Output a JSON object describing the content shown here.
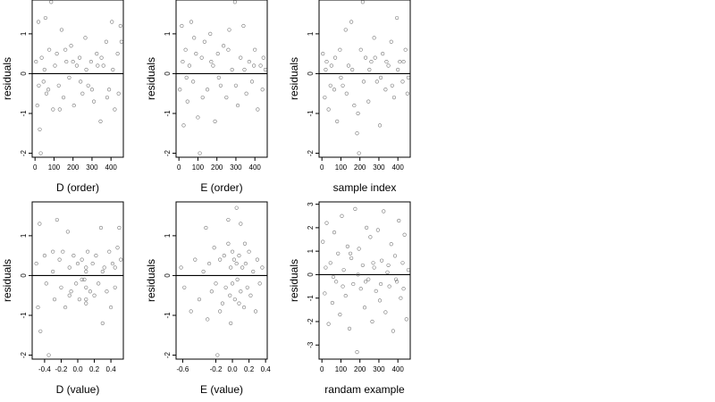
{
  "chart_data": [
    {
      "type": "scatter",
      "xlabel": "D (order)",
      "ylabel": "residuals",
      "xlim": [
        -15,
        465
      ],
      "ylim": [
        -2.1,
        1.85
      ],
      "xticks": [
        0,
        100,
        200,
        300,
        400
      ],
      "xtick_labels": [
        "0",
        "100",
        "200",
        "300",
        "400"
      ],
      "yticks": [
        -2,
        -1,
        0,
        1
      ],
      "ytick_labels": [
        "-2",
        "-1",
        "0",
        "1"
      ],
      "reference_line": 0,
      "grid": false,
      "points": [
        [
          5,
          0.3
        ],
        [
          12,
          -0.8
        ],
        [
          18,
          1.3
        ],
        [
          25,
          -1.4
        ],
        [
          35,
          0.4
        ],
        [
          45,
          -0.2
        ],
        [
          55,
          1.4
        ],
        [
          60,
          -0.5
        ],
        [
          75,
          0.6
        ],
        [
          85,
          1.8
        ],
        [
          95,
          -0.9
        ],
        [
          105,
          0.2
        ],
        [
          115,
          0.5
        ],
        [
          125,
          -0.3
        ],
        [
          140,
          1.1
        ],
        [
          150,
          -0.6
        ],
        [
          165,
          0.3
        ],
        [
          180,
          -0.1
        ],
        [
          190,
          0.7
        ],
        [
          205,
          -0.8
        ],
        [
          220,
          0.2
        ],
        [
          235,
          0.4
        ],
        [
          250,
          -0.5
        ],
        [
          265,
          0.9
        ],
        [
          280,
          -0.3
        ],
        [
          295,
          0.3
        ],
        [
          310,
          -0.7
        ],
        [
          325,
          0.5
        ],
        [
          345,
          -1.2
        ],
        [
          360,
          0.2
        ],
        [
          375,
          0.8
        ],
        [
          390,
          -0.4
        ],
        [
          405,
          1.3
        ],
        [
          420,
          -0.9
        ],
        [
          435,
          0.5
        ],
        [
          450,
          1.2
        ],
        [
          20,
          -0.3
        ],
        [
          30,
          -2.0
        ],
        [
          50,
          0.1
        ],
        [
          70,
          -0.4
        ],
        [
          130,
          -0.9
        ],
        [
          160,
          0.6
        ],
        [
          200,
          0.3
        ],
        [
          240,
          -0.2
        ],
        [
          270,
          0.1
        ],
        [
          300,
          -0.4
        ],
        [
          330,
          0.2
        ],
        [
          350,
          0.4
        ],
        [
          380,
          -0.6
        ],
        [
          410,
          0.1
        ],
        [
          440,
          -0.5
        ],
        [
          455,
          0.8
        ]
      ]
    },
    {
      "type": "scatter",
      "xlabel": "E (order)",
      "ylabel": "residuals",
      "xlim": [
        -15,
        465
      ],
      "ylim": [
        -2.1,
        1.85
      ],
      "xticks": [
        0,
        100,
        200,
        300,
        400
      ],
      "xtick_labels": [
        "0",
        "100",
        "200",
        "300",
        "400"
      ],
      "yticks": [
        -2,
        -1,
        0,
        1
      ],
      "ytick_labels": [
        "-2",
        "-1",
        "0",
        "1"
      ],
      "reference_line": 0,
      "grid": false,
      "points": [
        [
          5,
          -0.4
        ],
        [
          15,
          1.2
        ],
        [
          25,
          -1.3
        ],
        [
          35,
          0.6
        ],
        [
          45,
          -0.7
        ],
        [
          55,
          0.2
        ],
        [
          65,
          1.3
        ],
        [
          75,
          -0.2
        ],
        [
          90,
          0.5
        ],
        [
          100,
          -1.1
        ],
        [
          110,
          -2.0
        ],
        [
          120,
          0.4
        ],
        [
          135,
          0.8
        ],
        [
          150,
          -0.4
        ],
        [
          165,
          1.0
        ],
        [
          180,
          0.2
        ],
        [
          190,
          -1.2
        ],
        [
          205,
          0.5
        ],
        [
          220,
          -0.3
        ],
        [
          235,
          0.7
        ],
        [
          250,
          -0.6
        ],
        [
          265,
          1.1
        ],
        [
          280,
          0.1
        ],
        [
          295,
          1.8
        ],
        [
          310,
          -0.8
        ],
        [
          325,
          0.4
        ],
        [
          340,
          1.2
        ],
        [
          355,
          -0.5
        ],
        [
          370,
          0.3
        ],
        [
          385,
          -0.2
        ],
        [
          400,
          0.6
        ],
        [
          415,
          -0.9
        ],
        [
          430,
          0.2
        ],
        [
          445,
          0.4
        ],
        [
          20,
          0.3
        ],
        [
          40,
          -0.1
        ],
        [
          80,
          0.9
        ],
        [
          125,
          -0.6
        ],
        [
          170,
          0.3
        ],
        [
          210,
          -0.1
        ],
        [
          260,
          0.6
        ],
        [
          300,
          -0.3
        ],
        [
          345,
          0.1
        ],
        [
          395,
          0.2
        ],
        [
          440,
          -0.4
        ],
        [
          455,
          0.1
        ]
      ]
    },
    {
      "type": "scatter",
      "xlabel": "sample index",
      "ylabel": "residuals",
      "xlim": [
        -15,
        465
      ],
      "ylim": [
        -2.1,
        1.85
      ],
      "xticks": [
        0,
        100,
        200,
        300,
        400
      ],
      "xtick_labels": [
        "0",
        "100",
        "200",
        "300",
        "400"
      ],
      "yticks": [
        -2,
        -1,
        0,
        1
      ],
      "ytick_labels": [
        "-2",
        "-1",
        "0",
        "1"
      ],
      "reference_line": 0,
      "grid": false,
      "points": [
        [
          5,
          0.5
        ],
        [
          15,
          -0.6
        ],
        [
          25,
          0.3
        ],
        [
          35,
          -0.9
        ],
        [
          50,
          0.2
        ],
        [
          65,
          -0.4
        ],
        [
          80,
          -1.2
        ],
        [
          95,
          0.6
        ],
        [
          110,
          -0.3
        ],
        [
          125,
          1.1
        ],
        [
          140,
          0.2
        ],
        [
          155,
          1.3
        ],
        [
          170,
          -0.8
        ],
        [
          185,
          -1.5
        ],
        [
          195,
          -2.0
        ],
        [
          205,
          0.6
        ],
        [
          215,
          1.8
        ],
        [
          230,
          0.4
        ],
        [
          245,
          -0.7
        ],
        [
          260,
          0.3
        ],
        [
          275,
          0.9
        ],
        [
          290,
          -0.2
        ],
        [
          305,
          -1.3
        ],
        [
          320,
          0.5
        ],
        [
          335,
          -0.4
        ],
        [
          350,
          0.2
        ],
        [
          365,
          0.8
        ],
        [
          380,
          -0.6
        ],
        [
          395,
          1.4
        ],
        [
          410,
          0.3
        ],
        [
          425,
          -0.2
        ],
        [
          440,
          0.6
        ],
        [
          450,
          -0.5
        ],
        [
          20,
          0.1
        ],
        [
          45,
          -0.3
        ],
        [
          70,
          0.4
        ],
        [
          100,
          -0.1
        ],
        [
          130,
          -0.5
        ],
        [
          160,
          0.1
        ],
        [
          190,
          -1.0
        ],
        [
          220,
          -0.2
        ],
        [
          250,
          0.1
        ],
        [
          280,
          0.4
        ],
        [
          310,
          -0.1
        ],
        [
          340,
          0.3
        ],
        [
          370,
          -0.3
        ],
        [
          400,
          0.1
        ],
        [
          430,
          0.3
        ],
        [
          455,
          -0.1
        ]
      ]
    },
    {
      "type": "scatter",
      "xlabel": "D (value)",
      "ylabel": "residuals",
      "xlim": [
        -0.55,
        0.55
      ],
      "ylim": [
        -2.1,
        1.85
      ],
      "xticks": [
        -0.4,
        -0.2,
        0.0,
        0.2,
        0.4
      ],
      "xtick_labels": [
        "-0.4",
        "-0.2",
        "0.0",
        "0.2",
        "0.4"
      ],
      "yticks": [
        -2,
        -1,
        0,
        1
      ],
      "ytick_labels": [
        "-2",
        "-1",
        "0",
        "1"
      ],
      "reference_line": 0,
      "grid": false,
      "points": [
        [
          -0.5,
          0.3
        ],
        [
          -0.48,
          -0.8
        ],
        [
          -0.46,
          1.3
        ],
        [
          -0.45,
          -1.4
        ],
        [
          -0.4,
          0.5
        ],
        [
          -0.38,
          -0.2
        ],
        [
          -0.35,
          -2.0
        ],
        [
          -0.3,
          0.1
        ],
        [
          -0.28,
          -0.6
        ],
        [
          -0.25,
          1.4
        ],
        [
          -0.22,
          0.4
        ],
        [
          -0.2,
          -0.3
        ],
        [
          -0.18,
          0.6
        ],
        [
          -0.15,
          -0.8
        ],
        [
          -0.12,
          1.1
        ],
        [
          -0.1,
          0.2
        ],
        [
          -0.08,
          -0.4
        ],
        [
          -0.05,
          0.5
        ],
        [
          -0.02,
          -0.2
        ],
        [
          0.0,
          0.3
        ],
        [
          0.02,
          -0.6
        ],
        [
          0.05,
          0.4
        ],
        [
          0.08,
          -0.1
        ],
        [
          0.1,
          0.2
        ],
        [
          0.1,
          -0.3
        ],
        [
          0.1,
          -0.6
        ],
        [
          0.1,
          -0.7
        ],
        [
          0.1,
          0.1
        ],
        [
          0.12,
          0.6
        ],
        [
          0.15,
          -0.4
        ],
        [
          0.18,
          0.3
        ],
        [
          0.2,
          -0.5
        ],
        [
          0.22,
          0.5
        ],
        [
          0.25,
          -0.2
        ],
        [
          0.28,
          1.2
        ],
        [
          0.3,
          -1.2
        ],
        [
          0.32,
          0.2
        ],
        [
          0.35,
          -0.4
        ],
        [
          0.38,
          0.6
        ],
        [
          0.4,
          -0.8
        ],
        [
          0.42,
          0.3
        ],
        [
          0.45,
          -0.3
        ],
        [
          0.48,
          0.7
        ],
        [
          0.5,
          1.2
        ],
        [
          0.52,
          0.4
        ],
        [
          -0.3,
          0.6
        ],
        [
          -0.1,
          -0.5
        ],
        [
          0.05,
          -0.1
        ],
        [
          0.3,
          0.1
        ],
        [
          0.45,
          0.2
        ]
      ]
    },
    {
      "type": "scatter",
      "xlabel": "E (value)",
      "ylabel": "residuals",
      "xlim": [
        -0.68,
        0.42
      ],
      "ylim": [
        -2.1,
        1.85
      ],
      "xticks": [
        -0.6,
        -0.2,
        0.0,
        0.2,
        0.4
      ],
      "xtick_labels": [
        "-0.6",
        "-0.2",
        "0.0",
        "0.2",
        "0.4"
      ],
      "yticks": [
        -2,
        -1,
        0,
        1
      ],
      "ytick_labels": [
        "-2",
        "-1",
        "0",
        "1"
      ],
      "reference_line": 0,
      "grid": false,
      "points": [
        [
          -0.62,
          0.2
        ],
        [
          -0.58,
          -0.3
        ],
        [
          -0.5,
          -0.9
        ],
        [
          -0.45,
          0.4
        ],
        [
          -0.4,
          -0.6
        ],
        [
          -0.35,
          0.1
        ],
        [
          -0.32,
          1.2
        ],
        [
          -0.3,
          -1.1
        ],
        [
          -0.28,
          0.3
        ],
        [
          -0.25,
          -0.4
        ],
        [
          -0.22,
          0.7
        ],
        [
          -0.2,
          -0.2
        ],
        [
          -0.18,
          -2.0
        ],
        [
          -0.15,
          0.4
        ],
        [
          -0.12,
          -0.7
        ],
        [
          -0.1,
          0.5
        ],
        [
          -0.08,
          -0.3
        ],
        [
          -0.05,
          0.8
        ],
        [
          -0.03,
          -0.5
        ],
        [
          -0.02,
          0.2
        ],
        [
          0.0,
          0.6
        ],
        [
          0.0,
          -0.2
        ],
        [
          0.02,
          0.4
        ],
        [
          0.03,
          -0.6
        ],
        [
          0.05,
          0.3
        ],
        [
          0.06,
          -0.1
        ],
        [
          0.08,
          0.5
        ],
        [
          0.1,
          -0.4
        ],
        [
          0.12,
          0.2
        ],
        [
          0.14,
          -0.8
        ],
        [
          0.16,
          0.3
        ],
        [
          0.18,
          -0.3
        ],
        [
          0.2,
          0.6
        ],
        [
          0.22,
          -0.5
        ],
        [
          0.25,
          0.1
        ],
        [
          0.28,
          -0.9
        ],
        [
          0.3,
          0.4
        ],
        [
          0.33,
          -0.2
        ],
        [
          0.36,
          0.2
        ],
        [
          0.05,
          1.7
        ],
        [
          -0.05,
          1.4
        ],
        [
          0.1,
          1.3
        ],
        [
          -0.15,
          -0.9
        ],
        [
          0.15,
          0.8
        ],
        [
          -0.02,
          -1.2
        ],
        [
          0.08,
          -0.7
        ]
      ]
    },
    {
      "type": "scatter",
      "xlabel": "randam example",
      "ylabel": "residuals",
      "xlim": [
        -15,
        465
      ],
      "ylim": [
        -3.6,
        3.1
      ],
      "xticks": [
        0,
        100,
        200,
        300,
        400
      ],
      "xtick_labels": [
        "0",
        "100",
        "200",
        "300",
        "400"
      ],
      "yticks": [
        -3,
        -2,
        -1,
        0,
        1,
        2,
        3
      ],
      "ytick_labels": [
        "-3",
        "-2",
        "-1",
        "0",
        "1",
        "2",
        "3"
      ],
      "reference_line": 0,
      "grid": false,
      "points": [
        [
          5,
          1.4
        ],
        [
          15,
          -0.8
        ],
        [
          25,
          2.2
        ],
        [
          35,
          -2.1
        ],
        [
          45,
          0.5
        ],
        [
          55,
          -1.2
        ],
        [
          65,
          1.8
        ],
        [
          75,
          -0.3
        ],
        [
          85,
          0.9
        ],
        [
          95,
          -1.7
        ],
        [
          105,
          2.5
        ],
        [
          115,
          0.2
        ],
        [
          125,
          -0.9
        ],
        [
          135,
          1.2
        ],
        [
          145,
          -2.3
        ],
        [
          155,
          0.7
        ],
        [
          165,
          -0.4
        ],
        [
          175,
          2.8
        ],
        [
          185,
          -3.3
        ],
        [
          195,
          1.1
        ],
        [
          205,
          -0.6
        ],
        [
          215,
          0.4
        ],
        [
          225,
          -1.4
        ],
        [
          235,
          2.0
        ],
        [
          245,
          -0.2
        ],
        [
          255,
          1.6
        ],
        [
          265,
          -2.0
        ],
        [
          275,
          0.3
        ],
        [
          285,
          -0.7
        ],
        [
          295,
          1.9
        ],
        [
          305,
          -1.1
        ],
        [
          315,
          0.6
        ],
        [
          325,
          2.7
        ],
        [
          335,
          -1.6
        ],
        [
          345,
          0.1
        ],
        [
          355,
          -0.5
        ],
        [
          365,
          1.3
        ],
        [
          375,
          -2.4
        ],
        [
          385,
          0.8
        ],
        [
          395,
          -0.3
        ],
        [
          405,
          2.3
        ],
        [
          415,
          -1.0
        ],
        [
          425,
          0.5
        ],
        [
          435,
          1.7
        ],
        [
          445,
          -1.9
        ],
        [
          455,
          0.2
        ],
        [
          20,
          0.3
        ],
        [
          60,
          -0.1
        ],
        [
          110,
          -0.5
        ],
        [
          150,
          0.9
        ],
        [
          190,
          0.0
        ],
        [
          230,
          -0.3
        ],
        [
          270,
          0.5
        ],
        [
          310,
          -0.4
        ],
        [
          350,
          0.4
        ],
        [
          390,
          -0.2
        ],
        [
          430,
          -0.6
        ]
      ]
    }
  ]
}
